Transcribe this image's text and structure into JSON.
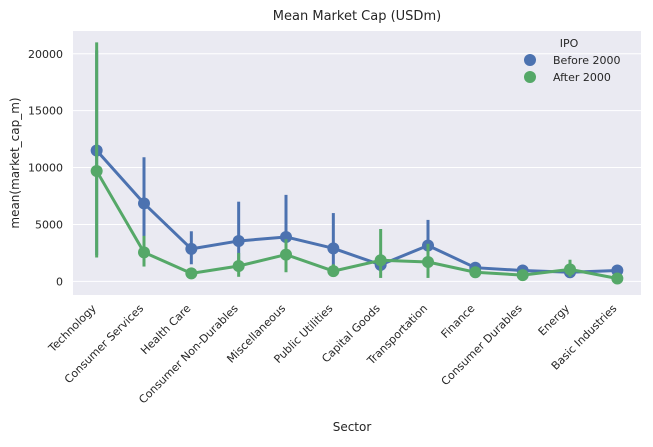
{
  "chart_data": {
    "type": "line",
    "title": "Mean Market Cap (USDm)",
    "xlabel": "Sector",
    "ylabel": "mean(market_cap_m)",
    "categories": [
      "Technology",
      "Consumer Services",
      "Health Care",
      "Consumer Non-Durables",
      "Miscellaneous",
      "Public Utilities",
      "Capital Goods",
      "Transportation",
      "Finance",
      "Consumer Durables",
      "Energy",
      "Basic Industries"
    ],
    "ylim": [
      -1200,
      22000
    ],
    "yticks": [
      0,
      5000,
      10000,
      15000,
      20000
    ],
    "ytick_labels": [
      "0",
      "5000",
      "10000",
      "15000",
      "20000"
    ],
    "grid": true,
    "legend": {
      "title": "IPO",
      "position": "top-right"
    },
    "series": [
      {
        "name": "Before 2000",
        "color": "#4c72b0",
        "values": [
          11500,
          6850,
          2850,
          3550,
          3900,
          2900,
          1450,
          3150,
          1200,
          950,
          800,
          950
        ],
        "ci_low": [
          2300,
          3600,
          1500,
          1400,
          1500,
          1300,
          900,
          1900,
          850,
          700,
          550,
          650
        ],
        "ci_high": [
          20300,
          10900,
          4400,
          7000,
          7600,
          6000,
          2000,
          5400,
          1550,
          1300,
          1150,
          1250
        ]
      },
      {
        "name": "After 2000",
        "color": "#55a868",
        "values": [
          9700,
          2550,
          700,
          1350,
          2350,
          900,
          1850,
          1700,
          800,
          550,
          1050,
          250
        ],
        "ci_low": [
          2100,
          1300,
          400,
          400,
          800,
          500,
          300,
          300,
          550,
          350,
          400,
          100
        ],
        "ci_high": [
          21000,
          4000,
          1000,
          2500,
          3700,
          1500,
          4600,
          3300,
          1100,
          800,
          1900,
          450
        ]
      }
    ]
  }
}
